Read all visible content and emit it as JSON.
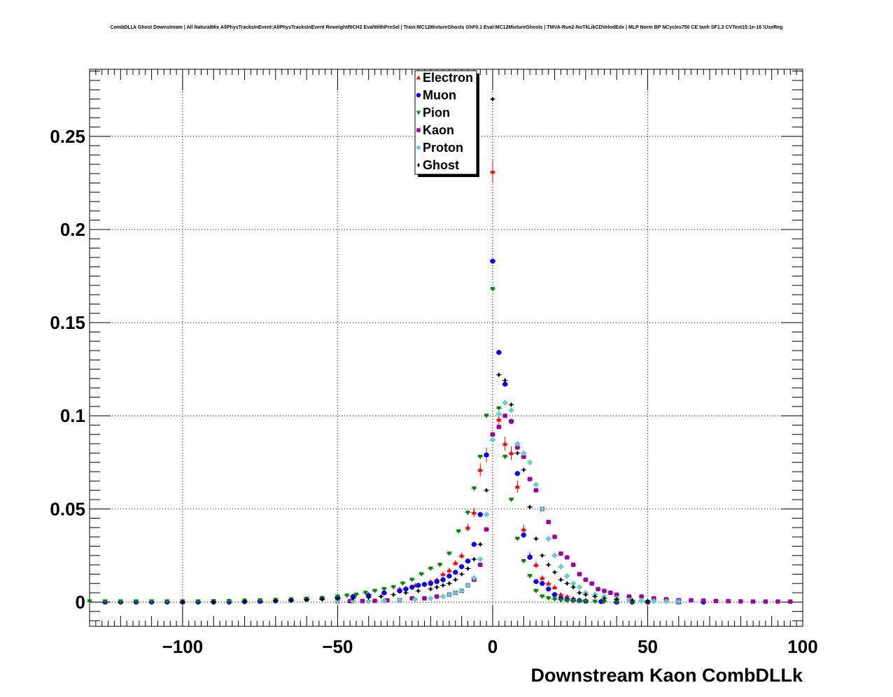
{
  "chart_data": {
    "type": "scatter",
    "title": "CombDLLk Ghost Downstream | All NaturalMix AllPhysTracksInEvent:AllPhysTracksInEvent ReweightRICH2 EvalWithPreSel | Train:MC12MixtureGhosts GhF0.1 Eval:MC12MixtureGhosts | TMVA-Run2-NoTkLikCDVelodEdx | MLP Norm BP NCycles750 CE tanh SF1.3 CVTest15:1e-16 !UseReg",
    "xlabel": "Downstream Kaon CombDLLk",
    "ylabel": "",
    "xlim": [
      -130,
      100
    ],
    "ylim": [
      -0.013,
      0.286
    ],
    "x_ticks": [
      -100,
      -50,
      0,
      50,
      100
    ],
    "x_tick_labels": [
      "−100",
      "−50",
      "0",
      "50",
      "100"
    ],
    "y_ticks": [
      0,
      0.05,
      0.1,
      0.15,
      0.2,
      0.25
    ],
    "y_tick_labels": [
      "0",
      "0.05",
      "0.1",
      "0.15",
      "0.2",
      "0.25"
    ],
    "grid": true,
    "legend_position": "top-center",
    "series": [
      {
        "name": "Electron",
        "color": "#ff0000",
        "marker": "triangle-up",
        "x": [
          -125,
          -100,
          -75,
          -50,
          -45,
          -40,
          -35,
          -30,
          -25,
          -20,
          -18,
          -16,
          -14,
          -12,
          -10,
          -8,
          -6,
          -4,
          -2,
          0,
          2,
          4,
          6,
          8,
          10,
          12,
          14,
          16,
          18,
          20,
          22,
          24,
          26,
          28,
          30,
          35,
          40,
          50,
          60
        ],
        "y": [
          0.0,
          0.0,
          0.0005,
          0.002,
          0.003,
          0.004,
          0.005,
          0.007,
          0.009,
          0.011,
          0.012,
          0.015,
          0.017,
          0.021,
          0.025,
          0.04,
          0.048,
          0.071,
          0.079,
          0.231,
          0.098,
          0.085,
          0.08,
          0.062,
          0.039,
          0.025,
          0.02,
          0.013,
          0.01,
          0.008,
          0.004,
          0.003,
          0.002,
          0.001,
          0.001,
          0.0005,
          0.0,
          0.0,
          0.0
        ],
        "yerr": [
          0,
          0,
          0,
          0,
          0,
          0,
          0,
          0,
          0,
          0.001,
          0.001,
          0.0012,
          0.0013,
          0.0015,
          0.0016,
          0.002,
          0.0025,
          0.0035,
          0.004,
          0.006,
          0.004,
          0.0038,
          0.0036,
          0.0032,
          0.0025,
          0.002,
          0.0018,
          0.0014,
          0.0012,
          0.001,
          0,
          0,
          0,
          0,
          0,
          0,
          0,
          0,
          0
        ]
      },
      {
        "name": "Muon",
        "color": "#0000ff",
        "marker": "circle",
        "x": [
          -125,
          -120,
          -115,
          -110,
          -105,
          -100,
          -95,
          -90,
          -85,
          -80,
          -75,
          -70,
          -65,
          -60,
          -55,
          -50,
          -45,
          -40,
          -35,
          -30,
          -28,
          -26,
          -24,
          -22,
          -20,
          -18,
          -16,
          -14,
          -12,
          -10,
          -8,
          -6,
          -4,
          -2,
          0,
          2,
          4,
          6,
          8,
          10,
          12,
          14,
          16,
          18,
          20,
          22,
          24,
          26,
          28,
          30,
          35,
          40,
          45,
          50,
          60,
          68
        ],
        "y": [
          0,
          0,
          0,
          0,
          0,
          0,
          0,
          0,
          0,
          0.0002,
          0.0004,
          0.0007,
          0.001,
          0.0015,
          0.002,
          0.0025,
          0.003,
          0.0035,
          0.005,
          0.006,
          0.007,
          0.008,
          0.009,
          0.0095,
          0.01,
          0.011,
          0.012,
          0.014,
          0.016,
          0.019,
          0.022,
          0.031,
          0.047,
          0.079,
          0.183,
          0.134,
          0.117,
          0.097,
          0.069,
          0.036,
          0.024,
          0.011,
          0.01,
          0.007,
          0.004,
          0.002,
          0.0015,
          0.001,
          0.0008,
          0.0005,
          0.0003,
          0.0,
          0.0,
          0.0,
          0.0,
          0.0
        ]
      },
      {
        "name": "Pion",
        "color": "#008000",
        "marker": "triangle-down",
        "x": [
          -130,
          -125,
          -120,
          -115,
          -110,
          -105,
          -100,
          -95,
          -90,
          -85,
          -80,
          -75,
          -70,
          -65,
          -60,
          -55,
          -50,
          -47,
          -44,
          -41,
          -38,
          -35,
          -32,
          -29,
          -26,
          -23,
          -20,
          -17,
          -14,
          -11,
          -8,
          -6,
          -4,
          -2,
          0,
          2,
          4,
          6,
          8,
          10,
          12,
          14,
          16,
          18,
          20,
          22,
          24,
          26,
          28,
          30,
          33,
          36,
          40,
          45,
          50
        ],
        "y": [
          0.0004,
          0.0004,
          0.0004,
          0.0004,
          0.0004,
          0.0004,
          0.0004,
          0.0004,
          0.0005,
          0.0006,
          0.0008,
          0.001,
          0.0012,
          0.0015,
          0.0018,
          0.002,
          0.003,
          0.0035,
          0.004,
          0.005,
          0.006,
          0.007,
          0.008,
          0.01,
          0.012,
          0.015,
          0.018,
          0.02,
          0.026,
          0.038,
          0.048,
          0.061,
          0.078,
          0.1,
          0.168,
          0.104,
          0.078,
          0.055,
          0.034,
          0.022,
          0.014,
          0.006,
          0.003,
          0.002,
          0.0015,
          0.001,
          0.0008,
          0.0006,
          0.0005,
          0.0004,
          0.0003,
          0.0002,
          0.0002,
          0.0001,
          0.0001
        ]
      },
      {
        "name": "Kaon",
        "color": "#990099",
        "marker": "square",
        "x": [
          -50,
          -46,
          -42,
          -38,
          -34,
          -30,
          -26,
          -22,
          -18,
          -14,
          -12,
          -10,
          -8,
          -6,
          -4,
          -2,
          0,
          2,
          4,
          6,
          8,
          10,
          12,
          14,
          16,
          18,
          20,
          22,
          24,
          26,
          28,
          30,
          32,
          34,
          36,
          38,
          40,
          44,
          48,
          52,
          56,
          60,
          64,
          68,
          72,
          76,
          80,
          84,
          88,
          92,
          96
        ],
        "y": [
          0.0005,
          0.0005,
          0.0006,
          0.0007,
          0.001,
          0.001,
          0.002,
          0.002,
          0.003,
          0.004,
          0.005,
          0.006,
          0.009,
          0.012,
          0.02,
          0.039,
          0.09,
          0.094,
          0.1,
          0.097,
          0.083,
          0.078,
          0.066,
          0.06,
          0.05,
          0.043,
          0.035,
          0.026,
          0.024,
          0.02,
          0.015,
          0.012,
          0.01,
          0.007,
          0.006,
          0.005,
          0.004,
          0.003,
          0.003,
          0.002,
          0.0015,
          0.001,
          0.001,
          0.0008,
          0.0006,
          0.0005,
          0.0004,
          0.0003,
          0.0003,
          0.0003,
          0.0003
        ]
      },
      {
        "name": "Proton",
        "color": "#66cccc",
        "marker": "cross",
        "x": [
          -50,
          -45,
          -40,
          -35,
          -30,
          -25,
          -20,
          -16,
          -14,
          -12,
          -10,
          -8,
          -6,
          -4,
          -2,
          0,
          2,
          4,
          6,
          8,
          10,
          12,
          14,
          16,
          18,
          20,
          22,
          24,
          26,
          28,
          30,
          33,
          36,
          40,
          44,
          48,
          52,
          56,
          60
        ],
        "y": [
          0.0005,
          0.0005,
          0.0006,
          0.0008,
          0.001,
          0.0015,
          0.002,
          0.003,
          0.004,
          0.005,
          0.006,
          0.009,
          0.013,
          0.023,
          0.047,
          0.087,
          0.101,
          0.107,
          0.103,
          0.085,
          0.08,
          0.075,
          0.063,
          0.05,
          0.034,
          0.025,
          0.019,
          0.014,
          0.01,
          0.008,
          0.005,
          0.004,
          0.003,
          0.002,
          0.001,
          0.0008,
          0.0005,
          0.0004,
          0.0003
        ]
      },
      {
        "name": "Ghost",
        "color": "#000000",
        "marker": "diamond",
        "x": [
          -100,
          -90,
          -80,
          -70,
          -65,
          -60,
          -55,
          -50,
          -45,
          -40,
          -36,
          -32,
          -28,
          -24,
          -20,
          -18,
          -16,
          -14,
          -12,
          -10,
          -8,
          -6,
          -4,
          -2,
          0,
          2,
          4,
          6,
          8,
          10,
          12,
          14,
          16,
          18,
          20,
          22,
          24,
          26,
          28,
          30,
          33,
          36,
          40,
          45,
          50
        ],
        "y": [
          0.0001,
          0.0002,
          0.0004,
          0.0007,
          0.001,
          0.0013,
          0.0015,
          0.0018,
          0.002,
          0.0025,
          0.003,
          0.004,
          0.005,
          0.006,
          0.007,
          0.008,
          0.009,
          0.01,
          0.012,
          0.015,
          0.018,
          0.023,
          0.031,
          0.06,
          0.27,
          0.122,
          0.119,
          0.106,
          0.08,
          0.071,
          0.051,
          0.034,
          0.025,
          0.02,
          0.016,
          0.012,
          0.01,
          0.008,
          0.005,
          0.004,
          0.003,
          0.002,
          0.0015,
          0.001,
          0.0005
        ]
      }
    ]
  }
}
